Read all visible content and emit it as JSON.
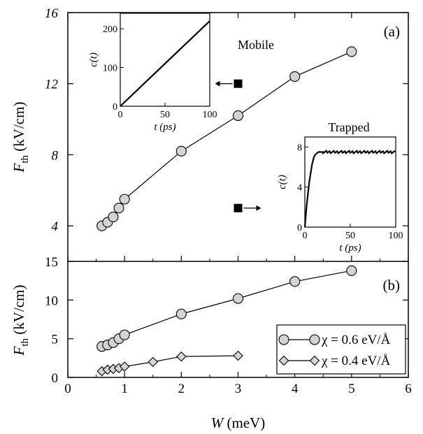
{
  "chart_data": [
    {
      "id": "a",
      "type": "line",
      "panel_label": "(a)",
      "xlim": [
        0,
        6
      ],
      "ylim": [
        2,
        16
      ],
      "x_ticks": [],
      "y_ticks": [
        4,
        8,
        12,
        16
      ],
      "ylabel": {
        "main": "F",
        "sub": "th",
        "unit": " (kV/cm)"
      },
      "series": [
        {
          "marker": "circle",
          "color": "#d3d3d3",
          "x": [
            0.6,
            0.7,
            0.8,
            0.9,
            1,
            2,
            3,
            4,
            5
          ],
          "y": [
            4.0,
            4.2,
            4.5,
            5.0,
            5.5,
            8.2,
            10.2,
            12.4,
            13.8
          ]
        }
      ],
      "annotations": [
        {
          "text": "Mobile",
          "arrow": "left",
          "marker_x": 3,
          "marker_y": 12
        },
        {
          "text": "Trapped",
          "arrow": "right",
          "marker_x": 3,
          "marker_y": 5
        }
      ],
      "insets": [
        {
          "id": "mobile",
          "type": "line",
          "xlim": [
            0,
            100
          ],
          "ylim": [
            0,
            240
          ],
          "x_ticks": [
            0,
            50,
            100
          ],
          "y_ticks": [
            0,
            100,
            200
          ],
          "xlabel": "t (ps)",
          "ylabel": "c(t)",
          "series": [
            {
              "x": [
                0,
                100
              ],
              "y": [
                0,
                220
              ]
            }
          ]
        },
        {
          "id": "trapped",
          "type": "line",
          "xlim": [
            0,
            100
          ],
          "ylim": [
            0,
            9
          ],
          "x_ticks": [
            0,
            50,
            100
          ],
          "y_ticks": [
            0,
            4,
            8
          ],
          "xlabel": "t (ps)",
          "ylabel": "c(t)",
          "series": [
            {
              "x": [
                0,
                2,
                5,
                8,
                10,
                12,
                15,
                20,
                100
              ],
              "y": [
                0,
                2.2,
                4.6,
                6.3,
                7.0,
                7.3,
                7.5,
                7.5,
                7.5
              ]
            }
          ]
        }
      ]
    },
    {
      "id": "b",
      "type": "line",
      "panel_label": "(b)",
      "xlim": [
        0,
        6
      ],
      "ylim": [
        0,
        15
      ],
      "x_ticks": [
        0,
        1,
        2,
        3,
        4,
        5,
        6
      ],
      "y_ticks": [
        0,
        5,
        10,
        15
      ],
      "xlabel": {
        "main": "W",
        "unit": " (meV)"
      },
      "ylabel": {
        "main": "F",
        "sub": "th",
        "unit": " (kV/cm)"
      },
      "series": [
        {
          "name": "χ = 0.6 eV/Å",
          "marker": "circle",
          "color": "#d3d3d3",
          "x": [
            0.6,
            0.7,
            0.8,
            0.9,
            1,
            2,
            3,
            4,
            5
          ],
          "y": [
            4.0,
            4.2,
            4.5,
            5.0,
            5.5,
            8.2,
            10.2,
            12.4,
            13.8
          ]
        },
        {
          "name": "χ = 0.4 eV/Å",
          "marker": "diamond",
          "color": "#d3d3d3",
          "x": [
            0.6,
            0.7,
            0.8,
            0.9,
            1,
            1.5,
            2,
            3
          ],
          "y": [
            0.8,
            1.0,
            1.1,
            1.2,
            1.4,
            2.0,
            2.7,
            2.8
          ]
        }
      ],
      "legend_position": "bottom-right"
    }
  ]
}
